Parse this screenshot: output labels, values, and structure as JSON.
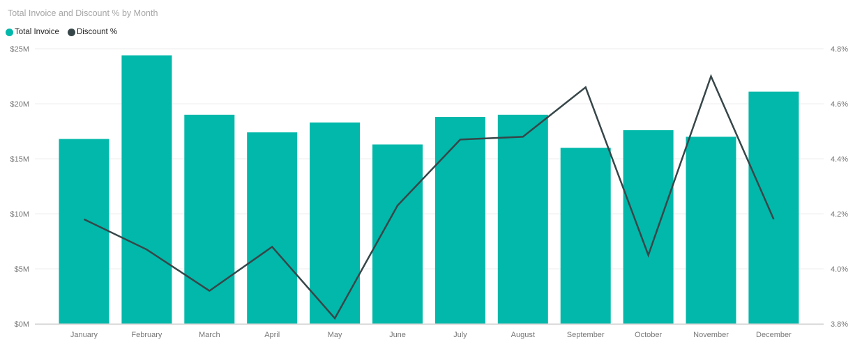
{
  "chart_data": {
    "type": "combo-bar-line",
    "title": "Total Invoice and Discount % by Month",
    "categories": [
      "January",
      "February",
      "March",
      "April",
      "May",
      "June",
      "July",
      "August",
      "September",
      "October",
      "November",
      "December"
    ],
    "series": [
      {
        "name": "Total Invoice",
        "chart": "bar",
        "axis": "left",
        "color": "#01B8AA",
        "unit": "$M",
        "values": [
          16.8,
          24.4,
          19.0,
          17.4,
          18.3,
          16.3,
          18.8,
          19.0,
          16.0,
          17.6,
          17.0,
          21.1
        ]
      },
      {
        "name": "Discount %",
        "chart": "line",
        "axis": "right",
        "color": "#374649",
        "unit": "%",
        "values": [
          4.18,
          4.07,
          3.92,
          4.08,
          3.82,
          4.23,
          4.47,
          4.48,
          4.66,
          4.05,
          4.7,
          4.18
        ]
      }
    ],
    "axes": {
      "y_left": {
        "min": 0,
        "max": 25,
        "ticks": [
          0,
          5,
          10,
          15,
          20,
          25
        ],
        "labels": [
          "$0M",
          "$5M",
          "$10M",
          "$15M",
          "$20M",
          "$25M"
        ]
      },
      "y_right": {
        "min": 3.8,
        "max": 4.8,
        "ticks": [
          3.8,
          4.0,
          4.2,
          4.4,
          4.6,
          4.8
        ],
        "labels": [
          "3.8%",
          "4.0%",
          "4.2%",
          "4.4%",
          "4.6%",
          "4.8%"
        ]
      }
    },
    "legend": {
      "position": "top-left",
      "items": [
        {
          "label": "Total Invoice",
          "color": "#01B8AA"
        },
        {
          "label": "Discount %",
          "color": "#374649"
        }
      ]
    },
    "grid": true
  },
  "colors": {
    "background": "#ffffff",
    "gridline": "#ececec",
    "axis_line": "#d6d6d6",
    "tick_label": "#777777",
    "title": "#a6a6a6",
    "legend_text": "#212121"
  }
}
